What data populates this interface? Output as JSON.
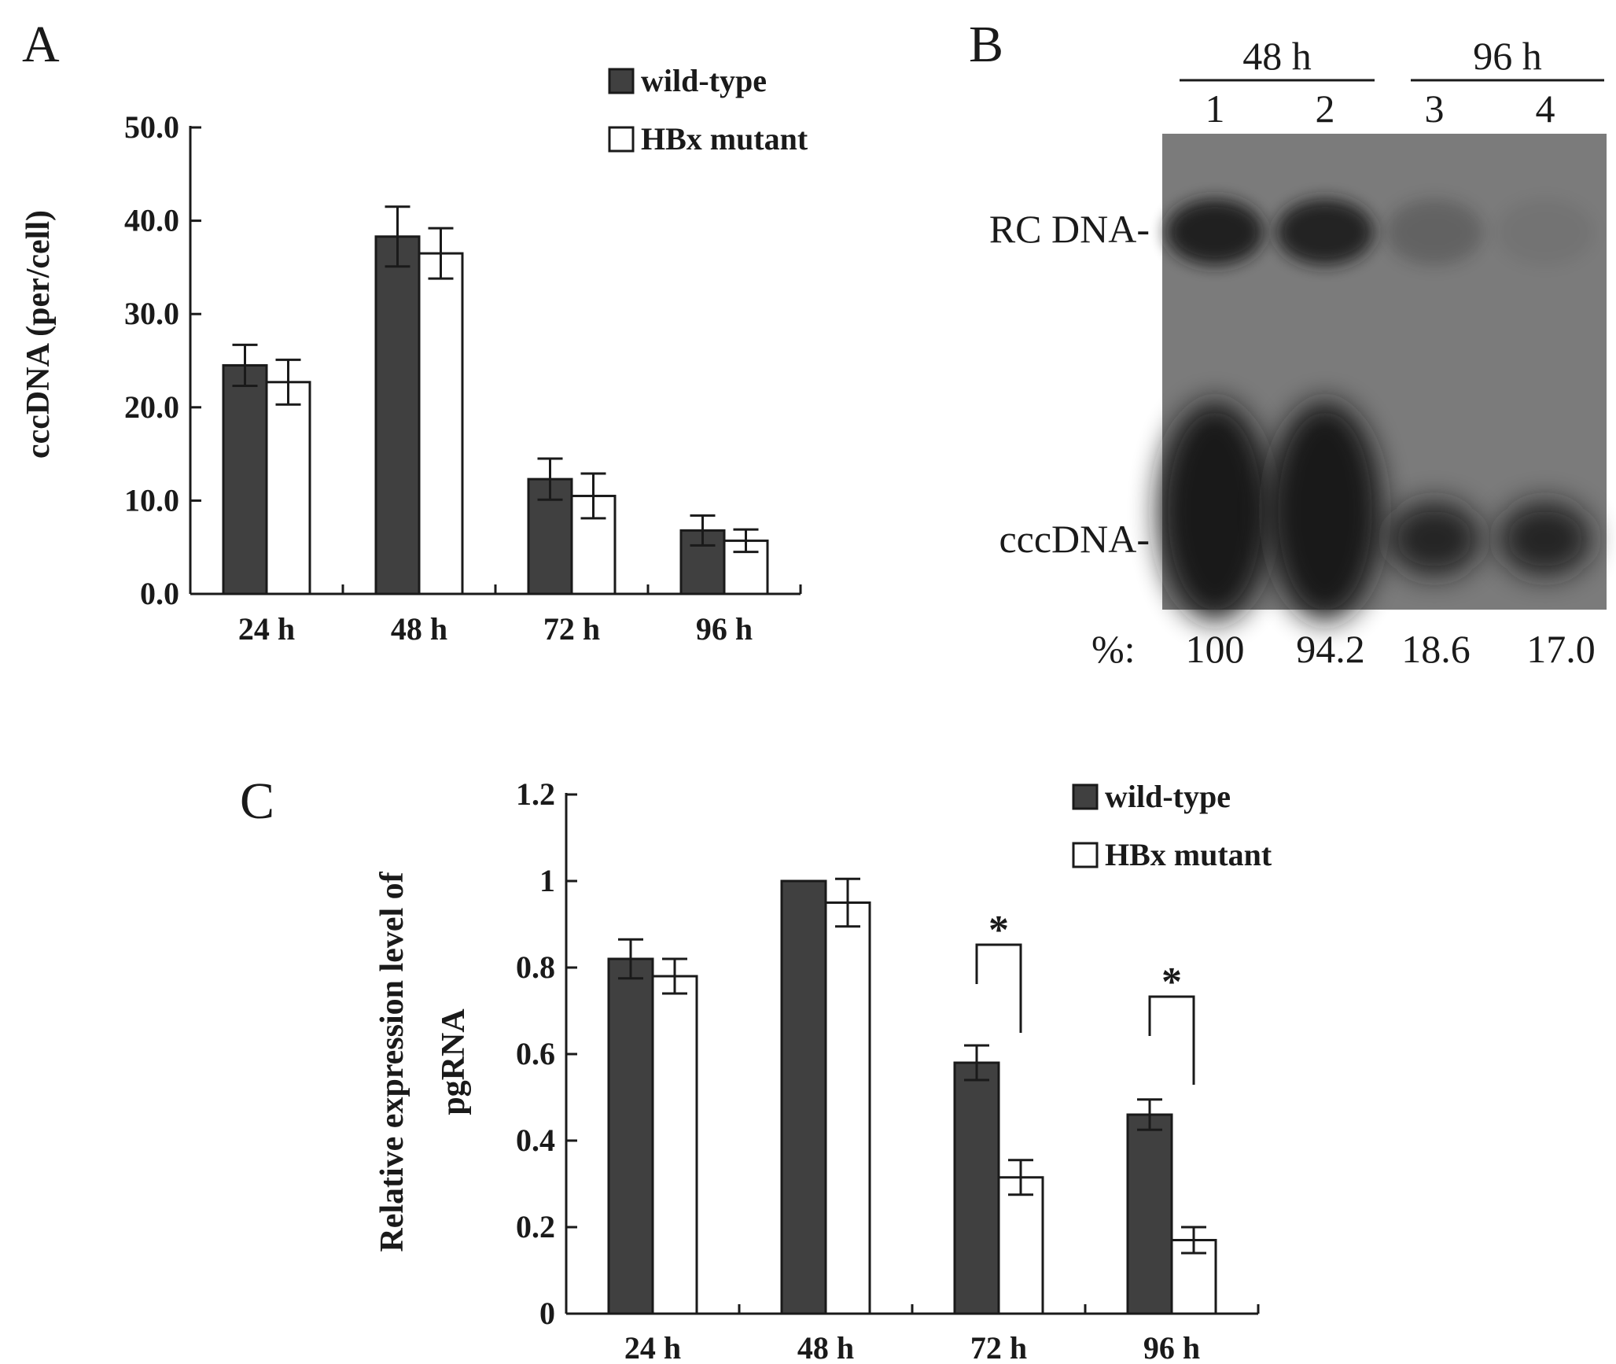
{
  "chart_data": [
    {
      "panel": "A",
      "type": "bar",
      "categories": [
        "24 h",
        "48 h",
        "72 h",
        "96 h"
      ],
      "series": [
        {
          "name": "wild-type",
          "values": [
            24.5,
            38.3,
            12.3,
            6.8
          ],
          "errors": [
            2.2,
            3.2,
            2.2,
            1.6
          ],
          "color": "#404040"
        },
        {
          "name": "HBx mutant",
          "values": [
            22.7,
            36.5,
            10.5,
            5.7
          ],
          "errors": [
            2.4,
            2.7,
            2.4,
            1.2
          ],
          "color": "#ffffff"
        }
      ],
      "ylabel": "cccDNA (per/cell)",
      "xlabel": "",
      "ylim": [
        0,
        50
      ],
      "yticks": [
        "0.0",
        "10.0",
        "20.0",
        "30.0",
        "40.0",
        "50.0"
      ],
      "legend": "top-right"
    },
    {
      "panel": "C",
      "type": "bar",
      "categories": [
        "24 h",
        "48 h",
        "72 h",
        "96 h"
      ],
      "series": [
        {
          "name": "wild-type",
          "values": [
            0.82,
            1.0,
            0.58,
            0.46
          ],
          "errors": [
            0.045,
            0,
            0.04,
            0.035
          ],
          "color": "#404040"
        },
        {
          "name": "HBx mutant",
          "values": [
            0.78,
            0.95,
            0.315,
            0.17
          ],
          "errors": [
            0.04,
            0.055,
            0.04,
            0.03
          ],
          "color": "#ffffff"
        }
      ],
      "ylabel_lines": [
        "Relative expression level of",
        "pgRNA"
      ],
      "xlabel": "",
      "ylim": [
        0,
        1.2
      ],
      "yticks": [
        "0",
        "0.2",
        "0.4",
        "0.6",
        "0.8",
        "1",
        "1.2"
      ],
      "significance": [
        {
          "category": "72 h",
          "label": "*"
        },
        {
          "category": "96 h",
          "label": "*"
        }
      ],
      "legend": "top-right"
    }
  ],
  "panels": {
    "a": "A",
    "b": "B",
    "c": "C"
  },
  "blot": {
    "groups": [
      {
        "label": "48 h",
        "lanes": [
          "1",
          "2"
        ]
      },
      {
        "label": "96 h",
        "lanes": [
          "3",
          "4"
        ]
      }
    ],
    "band_labels": [
      "RC DNA-",
      "cccDNA-"
    ],
    "percent_label": "%:",
    "percentages": [
      "100",
      "94.2",
      "18.6",
      "17.0"
    ]
  }
}
